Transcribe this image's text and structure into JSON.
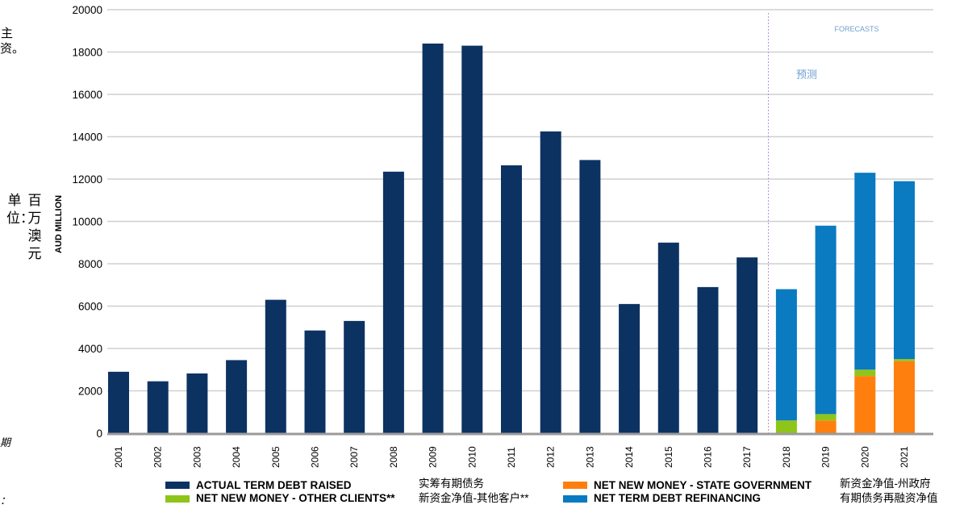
{
  "fragments": {
    "left_top": "主资。",
    "left_bottom1": "期",
    "left_bottom2": "："
  },
  "unit_label": {
    "cn_col1": "单位：",
    "cn_col2": "百万澳元",
    "en": "AUD MILLION"
  },
  "colors": {
    "actual": "#0c3262",
    "refinancing": "#0a7ac1",
    "state_gov": "#ff7f0e",
    "other_clients": "#8fc51a",
    "grid": "#cfcfcf",
    "forecast_line": "#b58ce0",
    "forecast_text": "#6f9fd0"
  },
  "chart_data": {
    "type": "bar",
    "stacked": true,
    "categories": [
      "2001",
      "2002",
      "2003",
      "2004",
      "2005",
      "2006",
      "2007",
      "2008",
      "2009",
      "2010",
      "2011",
      "2012",
      "2013",
      "2014",
      "2015",
      "2016",
      "2017",
      "2018",
      "2019",
      "2020",
      "2021"
    ],
    "ylim": [
      0,
      20000
    ],
    "yticks": [
      0,
      2000,
      4000,
      6000,
      8000,
      10000,
      12000,
      14000,
      16000,
      18000,
      20000
    ],
    "ylabel": "AUD MILLION",
    "grid": true,
    "forecast_start": "2018",
    "forecast_labels": {
      "en": "FORECASTS",
      "cn": "预测"
    },
    "series": [
      {
        "name": "ACTUAL TERM DEBT RAISED",
        "name_cn": "实筹有期债务",
        "color": "#0c3262",
        "values": [
          2900,
          2450,
          2820,
          3450,
          6300,
          4850,
          5300,
          12350,
          18400,
          18300,
          12650,
          14250,
          12900,
          6100,
          9000,
          6900,
          8300,
          0,
          0,
          0,
          0
        ]
      },
      {
        "name": "NET NEW MONEY - STATE GOVERNMENT",
        "name_cn": "新资金净值-州政府",
        "color": "#ff7f0e",
        "values": [
          0,
          0,
          0,
          0,
          0,
          0,
          0,
          0,
          0,
          0,
          0,
          0,
          0,
          0,
          0,
          0,
          0,
          0,
          600,
          2700,
          3400
        ]
      },
      {
        "name": "NET NEW MONEY - OTHER CLIENTS**",
        "name_cn": "新资金净值-其他客户**",
        "color": "#8fc51a",
        "values": [
          0,
          0,
          0,
          0,
          0,
          0,
          0,
          0,
          0,
          0,
          0,
          0,
          0,
          0,
          0,
          0,
          0,
          600,
          300,
          300,
          100
        ]
      },
      {
        "name": "NET TERM DEBT REFINANCING",
        "name_cn": "有期债务再融资净值",
        "color": "#0a7ac1",
        "values": [
          0,
          0,
          0,
          0,
          0,
          0,
          0,
          0,
          0,
          0,
          0,
          0,
          0,
          0,
          0,
          0,
          0,
          6200,
          8900,
          9300,
          8400
        ]
      }
    ]
  }
}
